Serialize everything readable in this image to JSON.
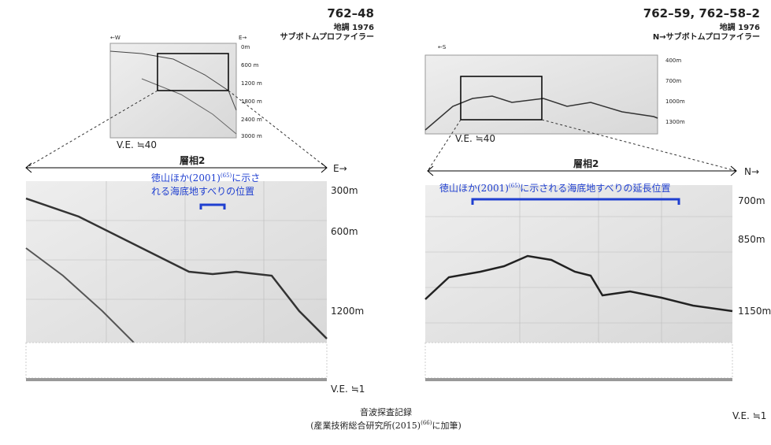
{
  "left": {
    "title": "762–48",
    "survey": "地調 1976",
    "instrument": "サブボトムプロファイラー",
    "inset": {
      "west": "←W",
      "east": "E→",
      "depths": [
        "0m",
        "600 m",
        "1200 m",
        "1800 m",
        "2400 m",
        "3000 m"
      ],
      "ve": "V.E. ≒40"
    },
    "facies": "層相2",
    "direction": "E→",
    "annotation": {
      "before": "徳山ほか(2001)",
      "ref": "(65)",
      "after_line1": "に示さ",
      "line2": "れる海底地すべりの位置"
    },
    "depths": [
      "300m",
      "600m",
      "1200m"
    ],
    "ve": "V.E. ≒1"
  },
  "right": {
    "title": "762–59, 762–58–2",
    "survey": "地調 1976",
    "instrument": "N→サブボトムプロファイラー",
    "inset": {
      "south": "←S",
      "depths": [
        "400m",
        "700m",
        "1000m",
        "1300m"
      ],
      "ve": "V.E. ≒40"
    },
    "facies": "層相2",
    "direction": "N→",
    "annotation": {
      "before": "徳山ほか(2001)",
      "ref": "(65)",
      "after": "に示される海底地すべりの延長位置"
    },
    "depths": [
      "700m",
      "850m",
      "1150m"
    ],
    "ve": "V.E. ≒1"
  },
  "caption": {
    "line1": "音波探査記録",
    "line2_before": "(産業技術総合研究所(2015)",
    "line2_ref": "(66)",
    "line2_after": "に加筆)"
  }
}
